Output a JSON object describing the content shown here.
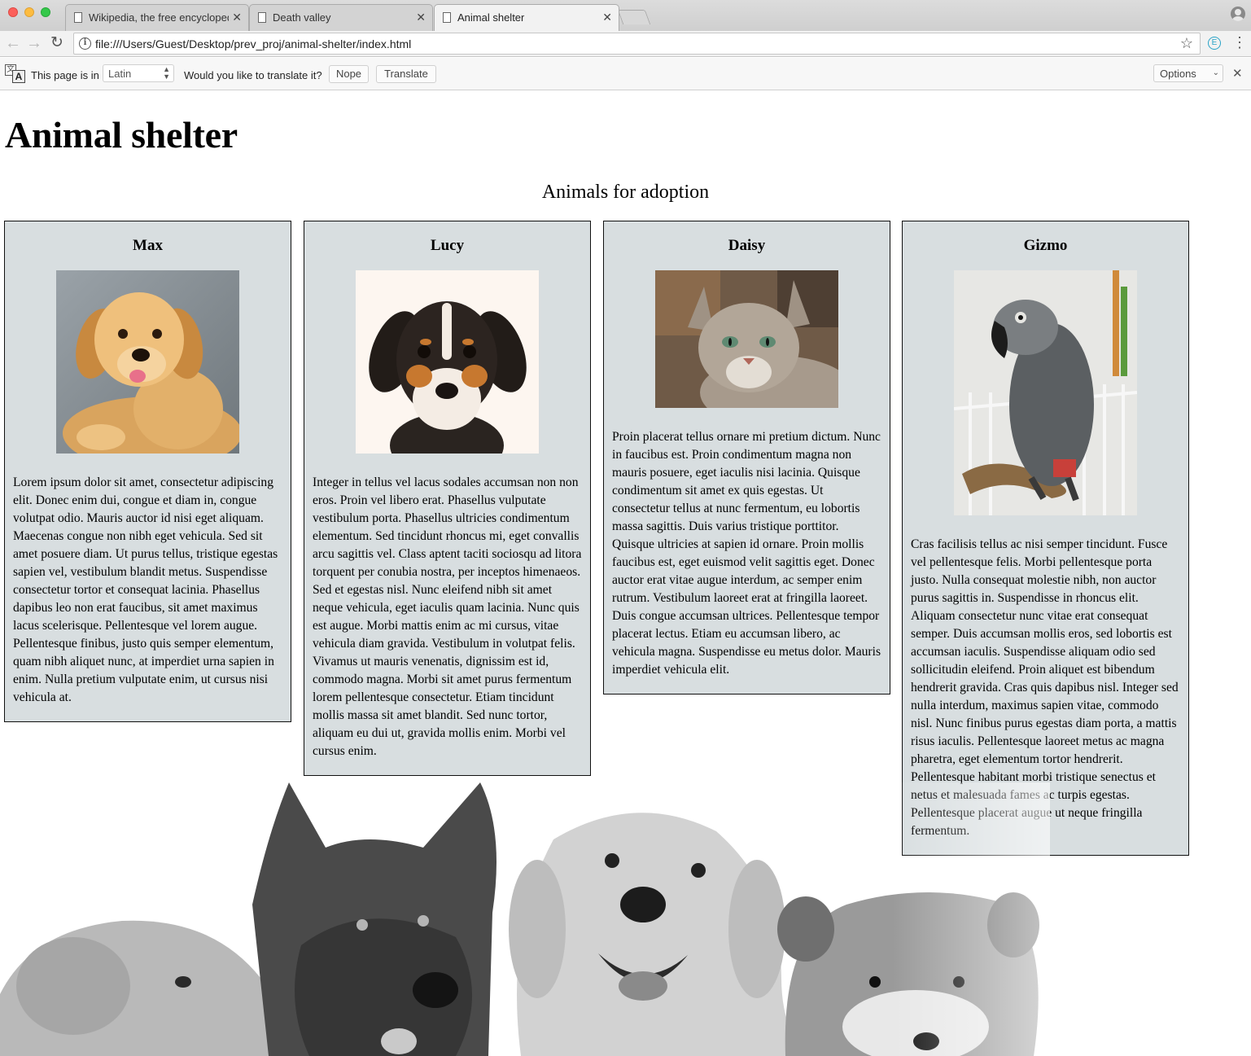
{
  "browser": {
    "tabs": [
      {
        "title": "Wikipedia, the free encycloped",
        "active": false
      },
      {
        "title": "Death valley",
        "active": false
      },
      {
        "title": "Animal shelter",
        "active": true
      }
    ],
    "url": "file:///Users/Guest/Desktop/prev_proj/animal-shelter/index.html",
    "extension_letter": "E"
  },
  "translate_bar": {
    "page_is_in": "This page is in",
    "language": "Latin",
    "question": "Would you like to translate it?",
    "nope_label": "Nope",
    "translate_label": "Translate",
    "options_label": "Options"
  },
  "page": {
    "title": "Animal shelter",
    "subtitle": "Animals for adoption",
    "animals": [
      {
        "name": "Max",
        "photo": "golden-retriever-puppy",
        "description": "Lorem ipsum dolor sit amet, consectetur adipiscing elit. Donec enim dui, congue et diam in, congue volutpat odio. Mauris auctor id nisi eget aliquam. Maecenas congue non nibh eget vehicula. Sed sit amet posuere diam. Ut purus tellus, tristique egestas sapien vel, vestibulum blandit metus. Suspendisse consectetur tortor et consequat lacinia. Phasellus dapibus leo non erat faucibus, sit amet maximus lacus scelerisque. Pellentesque vel lorem augue. Pellentesque finibus, justo quis semper elementum, quam nibh aliquet nunc, at imperdiet urna sapien in enim. Nulla pretium vulputate enim, ut cursus nisi vehicula at."
      },
      {
        "name": "Lucy",
        "photo": "tricolor-puppy",
        "description": "Integer in tellus vel lacus sodales accumsan non non eros. Proin vel libero erat. Phasellus vulputate vestibulum porta. Phasellus ultricies condimentum elementum. Sed tincidunt rhoncus mi, eget convallis arcu sagittis vel. Class aptent taciti sociosqu ad litora torquent per conubia nostra, per inceptos himenaeos. Sed et egestas nisl. Nunc eleifend nibh sit amet neque vehicula, eget iaculis quam lacinia. Nunc quis est augue. Morbi mattis enim ac mi cursus, vitae vehicula diam gravida. Vestibulum in volutpat felis. Vivamus ut mauris venenatis, dignissim est id, commodo magna. Morbi sit amet purus fermentum lorem pellentesque consectetur. Etiam tincidunt mollis massa sit amet blandit. Sed nunc tortor, aliquam eu dui ut, gravida mollis enim. Morbi vel cursus enim."
      },
      {
        "name": "Daisy",
        "photo": "tabby-cat",
        "description": "Proin placerat tellus ornare mi pretium dictum. Nunc in faucibus est. Proin condimentum magna non mauris posuere, eget iaculis nisi lacinia. Quisque condimentum sit amet ex quis egestas. Ut consectetur tellus at nunc fermentum, eu lobortis massa sagittis. Duis varius tristique porttitor. Quisque ultricies at sapien id ornare. Proin mollis faucibus est, eget euismod velit sagittis eget. Donec auctor erat vitae augue interdum, ac semper enim rutrum. Vestibulum laoreet erat at fringilla laoreet. Duis congue accumsan ultrices. Pellentesque tempor placerat lectus. Etiam eu accumsan libero, ac vehicula magna. Suspendisse eu metus dolor. Mauris imperdiet vehicula elit."
      },
      {
        "name": "Gizmo",
        "photo": "grey-parrot",
        "description": "Cras facilisis tellus ac nisi semper tincidunt. Fusce vel pellentesque felis. Morbi pellentesque porta justo. Nulla consequat molestie nibh, non auctor purus sagittis in. Suspendisse in rhoncus elit. Aliquam consectetur nunc vitae erat consequat semper. Duis accumsan mollis eros, sed lobortis est accumsan iaculis. Suspendisse aliquam odio sed sollicitudin eleifend. Proin aliquet est bibendum hendrerit gravida. Cras quis dapibus nisl. Integer sed nulla interdum, maximus sapien vitae, commodo nisl. Nunc finibus purus egestas diam porta, a mattis risus iaculis. Pellentesque laoreet metus ac magna pharetra, eget elementum tortor hendrerit. Pellentesque habitant morbi tristique senectus et netus et malesuada fames ac turpis egestas. Pellentesque placerat augue ut neque fringilla fermentum."
      }
    ]
  },
  "colors": {
    "card_background": "#d8dee0",
    "card_border": "#111111"
  }
}
